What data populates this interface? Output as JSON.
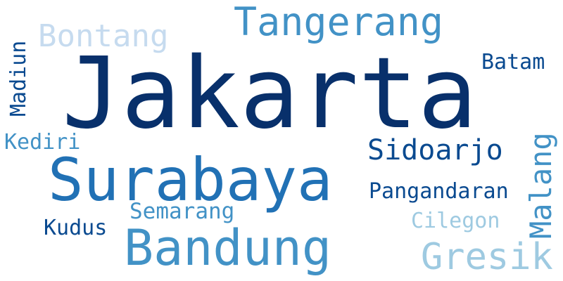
{
  "words": {
    "jakarta": "Jakarta",
    "surabaya": "Surabaya",
    "bandung": "Bandung",
    "tangerang": "Tangerang",
    "bontang": "Bontang",
    "sidoarjo": "Sidoarjo",
    "gresik": "Gresik",
    "batam": "Batam",
    "pangandaran": "Pangandaran",
    "semarang": "Semarang",
    "kediri": "Kediri",
    "kudus": "Kudus",
    "cilegon": "Cilegon",
    "madiun": "Madiun",
    "malang": "Malang"
  },
  "palette": {
    "dark": "#08306b",
    "blue1": "#0a4a90",
    "blue2": "#2171b5",
    "blue3": "#4292c6",
    "blue4": "#6baed6",
    "light1": "#9ecae1",
    "light2": "#c6dbef"
  }
}
